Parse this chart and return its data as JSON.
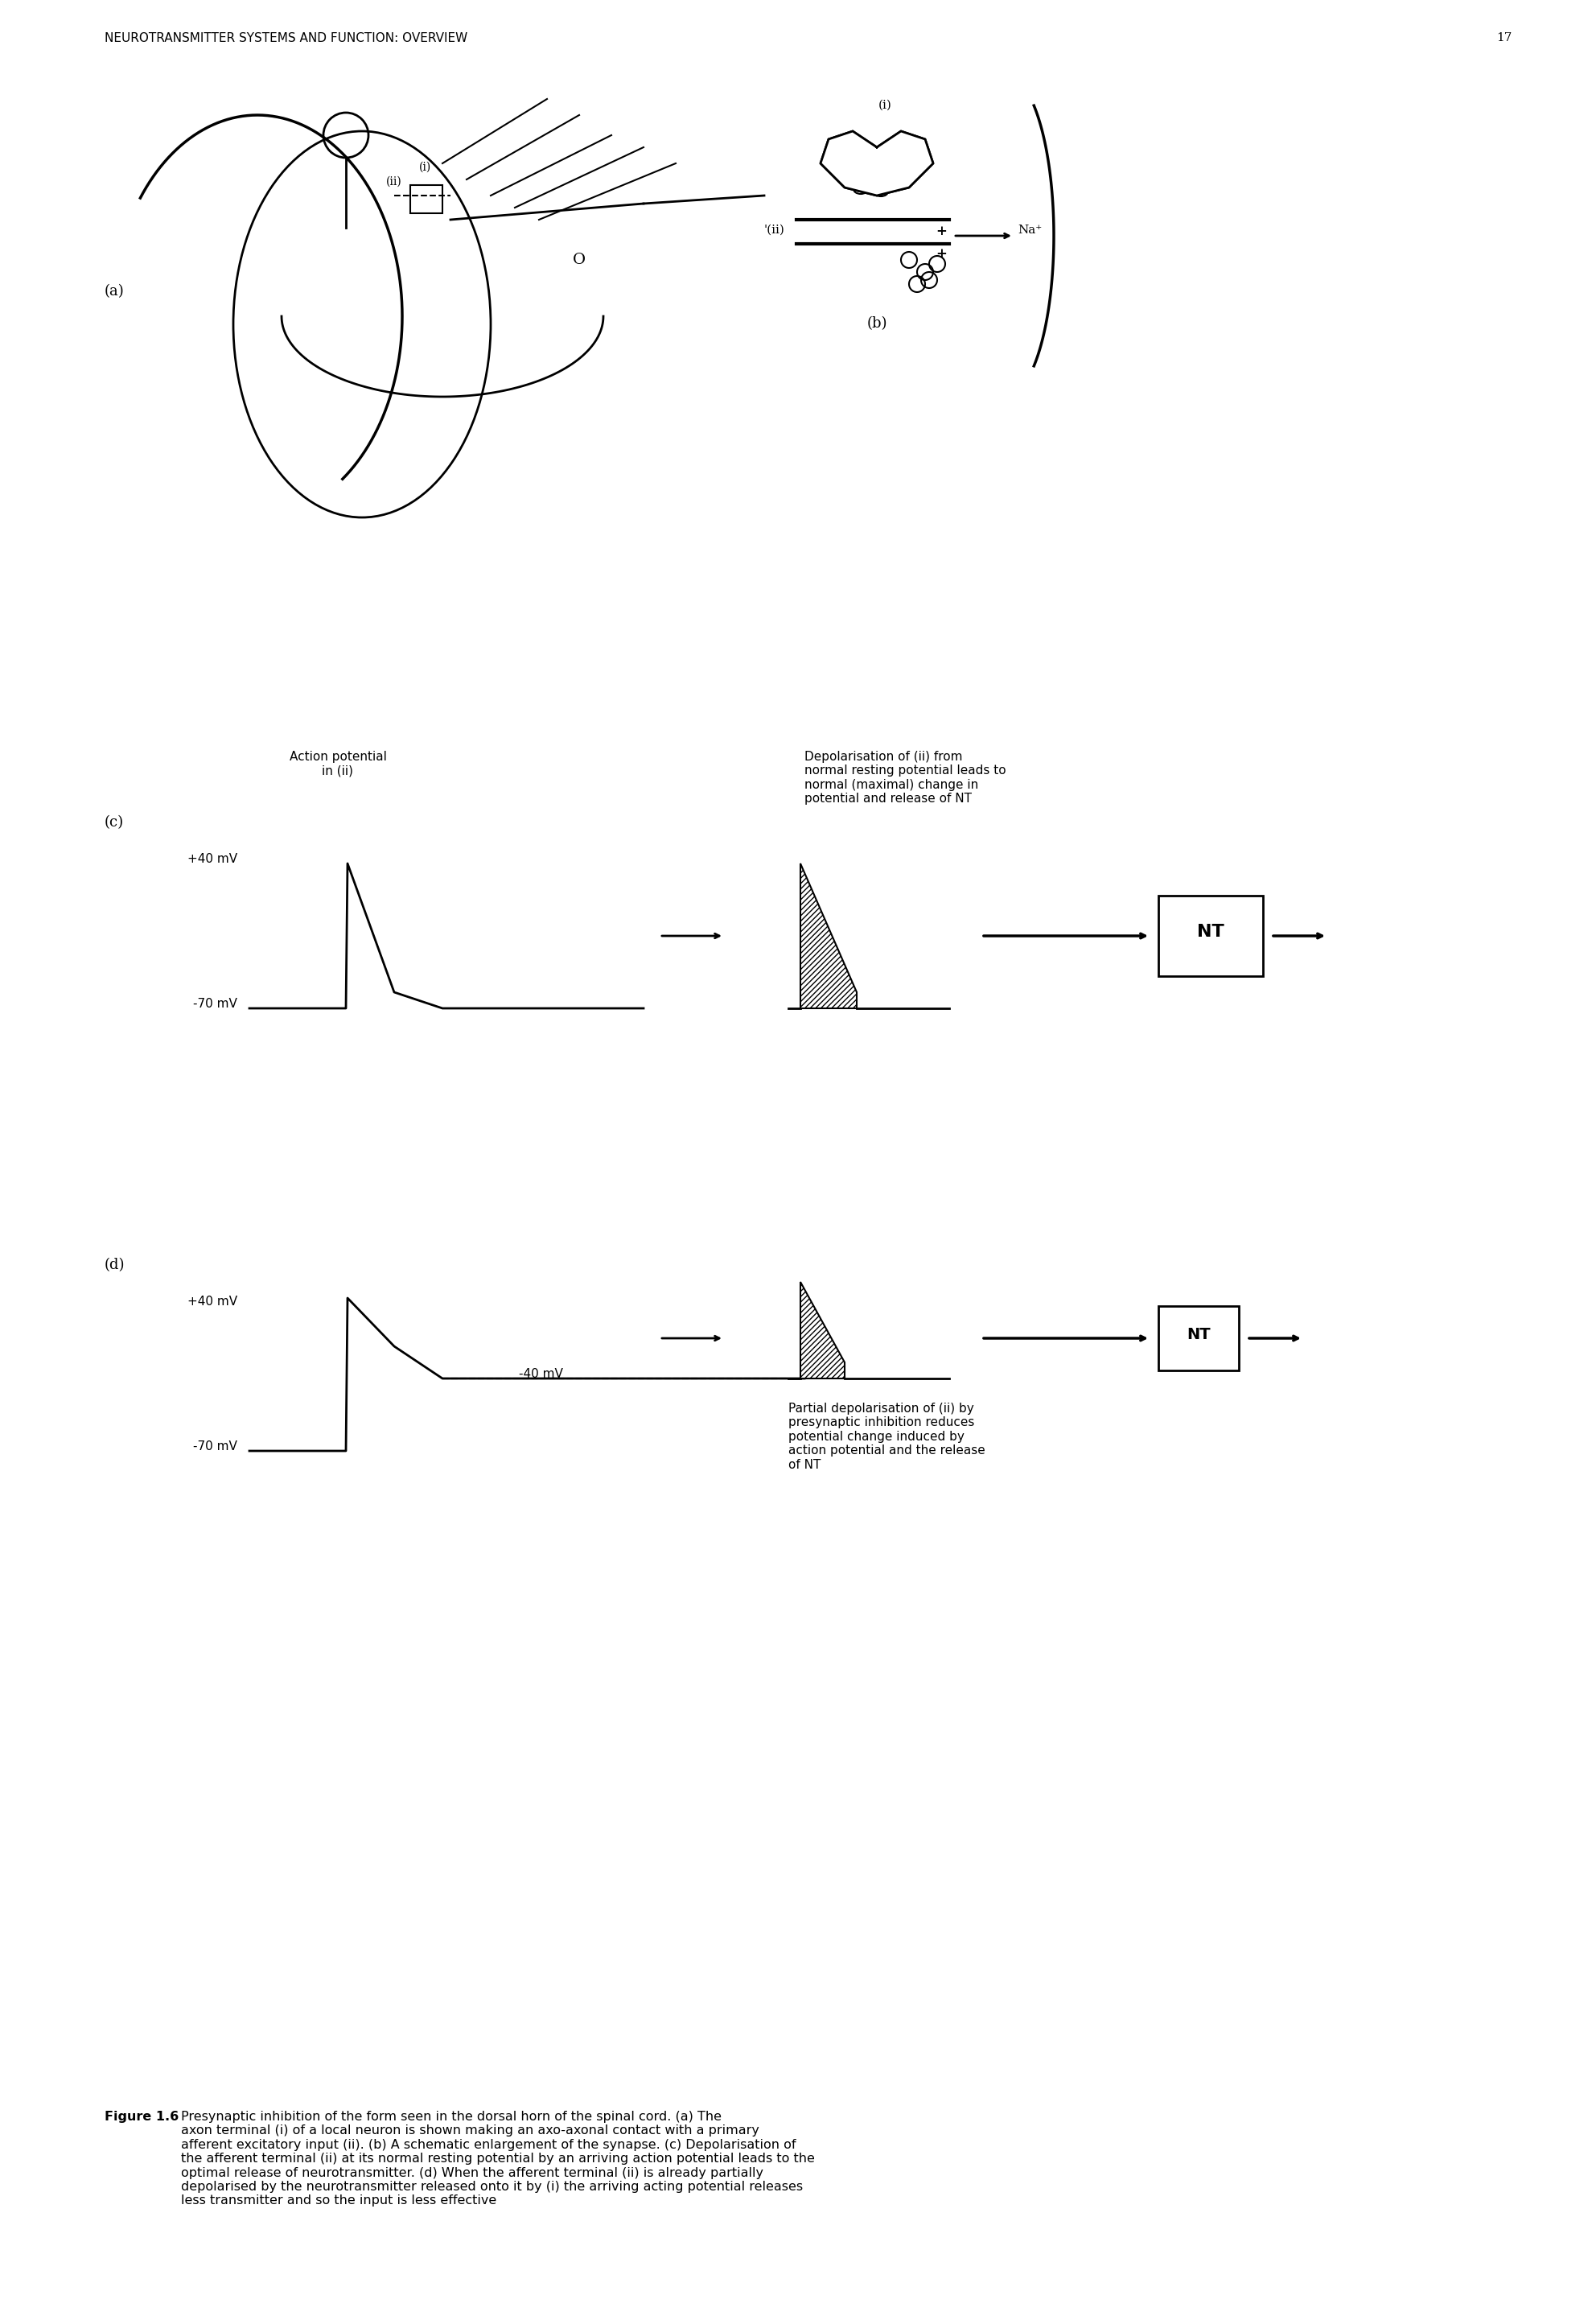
{
  "header_text": "NEUROTRANSMITTER SYSTEMS AND FUNCTION: OVERVIEW",
  "page_number": "17",
  "header_fontsize": 11,
  "label_a": "(a)",
  "label_b": "(b)",
  "label_c": "(c)",
  "label_d": "(d)",
  "action_potential_label": "Action potential\nin (ii)",
  "depol_c_label": "Depolarisation of (ii) from\nnormal resting potential leads to\nnormal (maximal) change in\npotential and release of NT",
  "depol_d_label": "Partial depolarisation of (ii) by\npresynaptic inhibition reduces\npotential change induced by\naction potential and the release\nof NT",
  "plus40": "+40 mV",
  "minus70": "-70 mV",
  "minus40": "-40 mV",
  "nt_label": "NT",
  "figure_caption": "Figure 1.6  Presynaptic inhibition of the form seen in the dorsal horn of the spinal cord. (a) The axon terminal (i) of a local neuron is shown making an axo-axonal contact with a primary afferent excitatory input (ii). (b) A schematic enlargement of the synapse. (c) Depolarisation of the afferent terminal (ii) at its normal resting potential by an arriving action potential leads to the optimal release of neurotransmitter. (d) When the afferent terminal (ii) is already partially depolarised by the neurotransmitter released onto it by (i) the arriving acting potential releases less transmitter and so the input is less effective",
  "bg_color": "#ffffff",
  "line_color": "#000000",
  "hatch_color": "#000000",
  "font_color": "#000000"
}
